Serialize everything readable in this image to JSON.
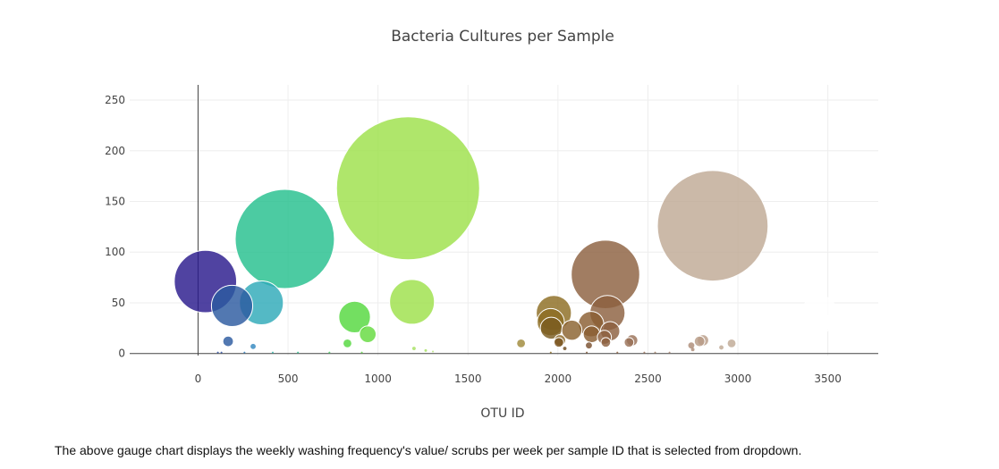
{
  "chart_data": {
    "type": "scatter",
    "subtype": "bubble",
    "title": "Bacteria Cultures per Sample",
    "xlabel": "OTU ID",
    "ylabel": "",
    "xlim": [
      -380,
      3780
    ],
    "ylim": [
      -2,
      265
    ],
    "x_ticks": [
      0,
      500,
      1000,
      1500,
      2000,
      2500,
      3000,
      3500
    ],
    "y_ticks": [
      0,
      50,
      100,
      150,
      200,
      250
    ],
    "grid": true,
    "legend": "none",
    "points": [
      {
        "x": 41,
        "y": 71,
        "color": "#2a1a8c"
      },
      {
        "x": 189,
        "y": 47,
        "color": "#2c5aa0"
      },
      {
        "x": 167,
        "y": 12,
        "color": "#2c5aa0"
      },
      {
        "x": 306,
        "y": 7,
        "color": "#3388c0"
      },
      {
        "x": 352,
        "y": 50,
        "color": "#2ea9b8"
      },
      {
        "x": 482,
        "y": 113,
        "color": "#24c08e"
      },
      {
        "x": 870,
        "y": 36,
        "color": "#54d83e"
      },
      {
        "x": 830,
        "y": 10,
        "color": "#54d83e"
      },
      {
        "x": 943,
        "y": 19,
        "color": "#64da3e"
      },
      {
        "x": 1167,
        "y": 163,
        "color": "#9ee04a"
      },
      {
        "x": 1189,
        "y": 51,
        "color": "#9ee04a"
      },
      {
        "x": 1200,
        "y": 5,
        "color": "#a6e060"
      },
      {
        "x": 1795,
        "y": 10,
        "color": "#a08a3a"
      },
      {
        "x": 1977,
        "y": 40,
        "color": "#8c6c22"
      },
      {
        "x": 1960,
        "y": 31,
        "color": "#8c6c22"
      },
      {
        "x": 1963,
        "y": 25,
        "color": "#7a5c20"
      },
      {
        "x": 2011,
        "y": 13,
        "color": "#8c6828"
      },
      {
        "x": 2005,
        "y": 11,
        "color": "#7a5420"
      },
      {
        "x": 2038,
        "y": 5,
        "color": "#6e4a1e"
      },
      {
        "x": 2077,
        "y": 23,
        "color": "#8a622e"
      },
      {
        "x": 2184,
        "y": 29,
        "color": "#8a5e32"
      },
      {
        "x": 2187,
        "y": 19,
        "color": "#8a5e32"
      },
      {
        "x": 2172,
        "y": 8,
        "color": "#7a5030"
      },
      {
        "x": 2264,
        "y": 78,
        "color": "#8c6040"
      },
      {
        "x": 2275,
        "y": 40,
        "color": "#8c6040"
      },
      {
        "x": 2290,
        "y": 22,
        "color": "#8c6040"
      },
      {
        "x": 2258,
        "y": 16,
        "color": "#8c6040"
      },
      {
        "x": 2266,
        "y": 11,
        "color": "#8c6040"
      },
      {
        "x": 2412,
        "y": 13,
        "color": "#9a7258"
      },
      {
        "x": 2395,
        "y": 11,
        "color": "#9a7258"
      },
      {
        "x": 2741,
        "y": 8,
        "color": "#ad8c78"
      },
      {
        "x": 2749,
        "y": 4,
        "color": "#ad8c78"
      },
      {
        "x": 2806,
        "y": 13,
        "color": "#b89c88"
      },
      {
        "x": 2787,
        "y": 12,
        "color": "#b89c88"
      },
      {
        "x": 2860,
        "y": 126,
        "color": "#c0aa95"
      },
      {
        "x": 2908,
        "y": 6,
        "color": "#c0aa95"
      },
      {
        "x": 2965,
        "y": 10,
        "color": "#c0aa95"
      },
      {
        "x": 3453,
        "y": 40,
        "color": "#ffffff"
      },
      {
        "x": 3440,
        "y": 30,
        "color": "#ffffff"
      },
      {
        "x": 110,
        "y": 1,
        "color": "#2a4aa0"
      },
      {
        "x": 130,
        "y": 1,
        "color": "#2a4aa0"
      },
      {
        "x": 258,
        "y": 1,
        "color": "#2c7ab8"
      },
      {
        "x": 415,
        "y": 1,
        "color": "#2eb4a8"
      },
      {
        "x": 555,
        "y": 1,
        "color": "#30c090"
      },
      {
        "x": 730,
        "y": 1,
        "color": "#44d060"
      },
      {
        "x": 910,
        "y": 1,
        "color": "#5cd840"
      },
      {
        "x": 1265,
        "y": 3,
        "color": "#a6e060"
      },
      {
        "x": 1305,
        "y": 2,
        "color": "#b0e070"
      },
      {
        "x": 1960,
        "y": 1,
        "color": "#8c6c22"
      },
      {
        "x": 2160,
        "y": 1,
        "color": "#7a5030"
      },
      {
        "x": 2330,
        "y": 1,
        "color": "#8c6040"
      },
      {
        "x": 2480,
        "y": 1,
        "color": "#9a7258"
      },
      {
        "x": 2540,
        "y": 1,
        "color": "#a07a60"
      },
      {
        "x": 2620,
        "y": 1,
        "color": "#a88470"
      }
    ]
  },
  "caption": "The above gauge chart displays the weekly washing frequency's value/ scrubs per week per sample ID that is selected from dropdown."
}
